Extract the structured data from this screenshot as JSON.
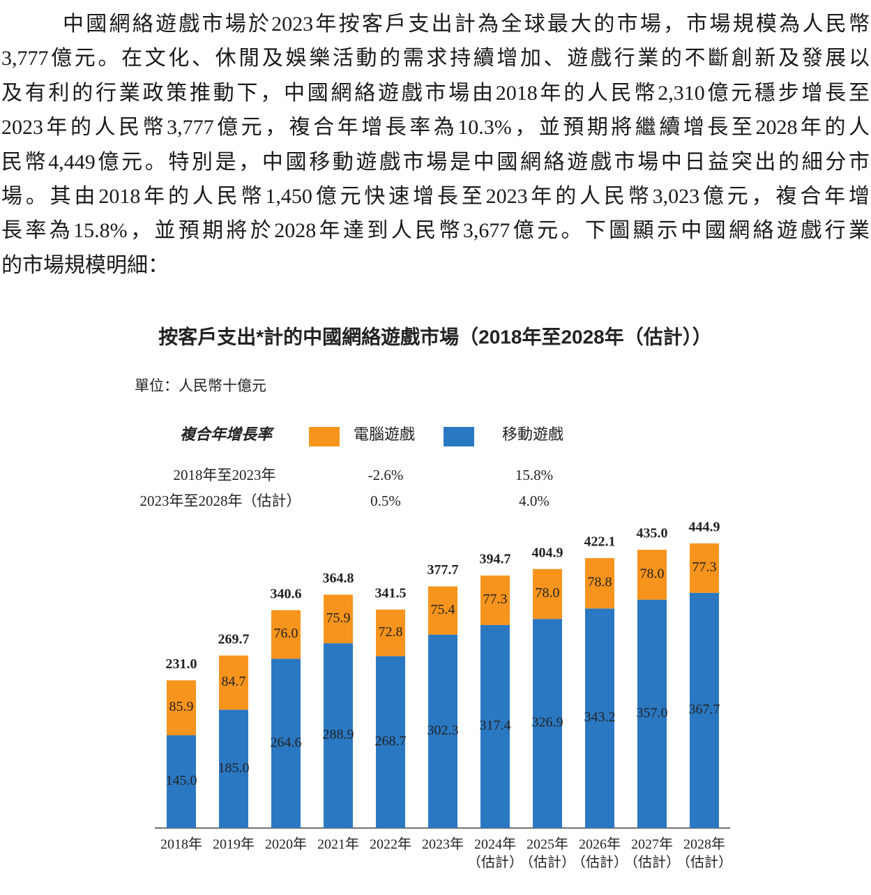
{
  "paragraph": {
    "lines": [
      "中國網絡遊戲市場於2023年按客戶支出計為全球最大的市場，市場規模為人民幣",
      "3,777億元。在文化、休閒及娛樂活動的需求持續增加、遊戲行業的不斷創新及發展以",
      "及有利的行業政策推動下，中國網絡遊戲市場由2018年的人民幣2,310億元穩步增長至",
      "2023年的人民幣3,777億元，複合年增長率為10.3%，並預期將繼續增長至2028年的人",
      "民幣4,449億元。特別是，中國移動遊戲市場是中國網絡遊戲市場中日益突出的細分市",
      "場。其由2018年的人民幣1,450億元快速增長至2023年的人民幣3,023億元，複合年增",
      "長率為15.8%，並預期將於2028年達到人民幣3,677億元。下圖顯示中國網絡遊戲行業",
      "的市場規模明細："
    ]
  },
  "chart_data": {
    "type": "stacked-bar",
    "title": "按客戶支出*計的中國網絡遊戲市場（2018年至2028年（估計））",
    "unit": "單位：人民幣十億元",
    "cagr_table": {
      "title": "複合年增長率",
      "rows": [
        {
          "label": "2018年至2023年",
          "values": [
            "-2.6%",
            "15.8%"
          ]
        },
        {
          "label": "2023年至2028年（估計）",
          "values": [
            "0.5%",
            "4.0%"
          ]
        }
      ]
    },
    "categories": [
      [
        "2018年"
      ],
      [
        "2019年"
      ],
      [
        "2020年"
      ],
      [
        "2021年"
      ],
      [
        "2022年"
      ],
      [
        "2023年"
      ],
      [
        "2024年",
        "（估計）"
      ],
      [
        "2025年",
        "（估計）"
      ],
      [
        "2026年",
        "（估計）"
      ],
      [
        "2027年",
        "（估計）"
      ],
      [
        "2028年",
        "（估計）"
      ]
    ],
    "series": [
      {
        "name": "移動遊戲",
        "color": "#2b78c2",
        "values": [
          145,
          185,
          264.6,
          288.9,
          268.7,
          302.3,
          317.4,
          326.9,
          343.2,
          357,
          367.7
        ],
        "value_labels": [
          "145.0",
          "185.0",
          "264.6",
          "288.9",
          "268.7",
          "302.3",
          "317.4",
          "326.9",
          "343.2",
          "357.0",
          "367.7"
        ]
      },
      {
        "name": "電腦遊戲",
        "color": "#f7941d",
        "values": [
          85.9,
          84.7,
          76,
          75.9,
          72.8,
          75.4,
          77.3,
          78,
          78.8,
          78,
          77.3
        ],
        "value_labels": [
          "85.9",
          "84.7",
          "76.0",
          "75.9",
          "72.8",
          "75.4",
          "77.3",
          "78.0",
          "78.8",
          "78.0",
          "77.3"
        ]
      }
    ],
    "totals": {
      "values": [
        231,
        269.7,
        340.6,
        364.8,
        341.5,
        377.7,
        394.7,
        404.9,
        422.1,
        435,
        444.9
      ],
      "value_labels": [
        "231.0",
        "269.7",
        "340.6",
        "364.8",
        "341.5",
        "377.7",
        "394.7",
        "404.9",
        "422.1",
        "435.0",
        "444.9"
      ]
    }
  }
}
